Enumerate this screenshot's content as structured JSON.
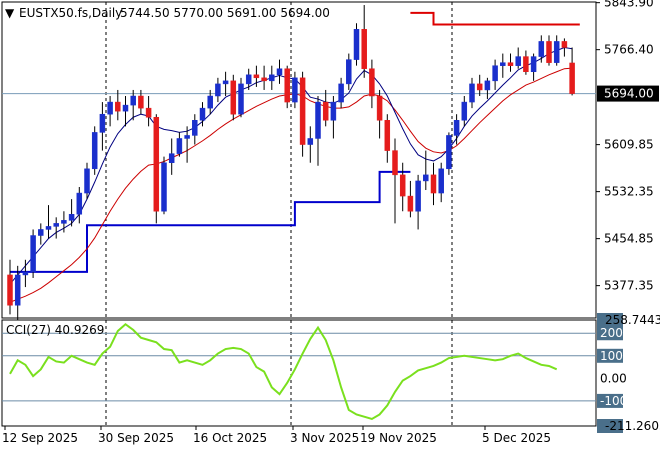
{
  "header": {
    "symbol": "EUSTX50.fs,Daily",
    "ohlc": "5744.50 5770.00 5691.00 5694.00"
  },
  "colors": {
    "bull_candle": "#1a2fcc",
    "bear_candle": "#e51c1c",
    "fast_ma": "#000080",
    "slow_ma": "#cc0000",
    "support": "#0000cc",
    "resistance": "#dd0000",
    "cci_line": "#7ae01e",
    "current_price_bg": "#000000",
    "cci_tag_bg": "#4a6f8a"
  },
  "current_price_label": "5694.00",
  "chart_data": [
    {
      "type": "candlestick",
      "price_axis_labels": [
        "5843.90",
        "5766.40",
        "5609.85",
        "5532.35",
        "5454.85",
        "5377.35"
      ],
      "x_labels": [
        "12 Sep 2025",
        "30 Sep 2025",
        "16 Oct 2025",
        "3 Nov 2025",
        "19 Nov 2025",
        "5 Dec 2025"
      ],
      "ylim": [
        5324,
        5845
      ],
      "candles": [
        [
          5395,
          5420,
          5330,
          5345
        ],
        [
          5345,
          5410,
          5320,
          5395
        ],
        [
          5395,
          5420,
          5375,
          5400
        ],
        [
          5400,
          5470,
          5390,
          5460
        ],
        [
          5460,
          5480,
          5445,
          5470
        ],
        [
          5470,
          5510,
          5455,
          5475
        ],
        [
          5475,
          5490,
          5455,
          5480
        ],
        [
          5480,
          5500,
          5465,
          5485
        ],
        [
          5485,
          5520,
          5475,
          5495
        ],
        [
          5495,
          5540,
          5480,
          5530
        ],
        [
          5530,
          5580,
          5520,
          5570
        ],
        [
          5570,
          5640,
          5560,
          5630
        ],
        [
          5630,
          5680,
          5600,
          5660
        ],
        [
          5660,
          5690,
          5640,
          5680
        ],
        [
          5680,
          5700,
          5650,
          5665
        ],
        [
          5665,
          5690,
          5640,
          5675
        ],
        [
          5675,
          5700,
          5650,
          5690
        ],
        [
          5690,
          5700,
          5660,
          5670
        ],
        [
          5670,
          5690,
          5640,
          5655
        ],
        [
          5655,
          5660,
          5480,
          5500
        ],
        [
          5500,
          5590,
          5495,
          5580
        ],
        [
          5580,
          5620,
          5560,
          5595
        ],
        [
          5595,
          5630,
          5590,
          5620
        ],
        [
          5620,
          5640,
          5580,
          5625
        ],
        [
          5625,
          5660,
          5610,
          5650
        ],
        [
          5650,
          5680,
          5640,
          5670
        ],
        [
          5670,
          5700,
          5660,
          5690
        ],
        [
          5690,
          5720,
          5680,
          5710
        ],
        [
          5710,
          5730,
          5690,
          5715
        ],
        [
          5715,
          5725,
          5650,
          5660
        ],
        [
          5660,
          5720,
          5655,
          5710
        ],
        [
          5710,
          5735,
          5700,
          5725
        ],
        [
          5725,
          5740,
          5705,
          5720
        ],
        [
          5720,
          5740,
          5700,
          5715
        ],
        [
          5715,
          5740,
          5700,
          5725
        ],
        [
          5725,
          5750,
          5710,
          5735
        ],
        [
          5735,
          5740,
          5670,
          5680
        ],
        [
          5680,
          5730,
          5670,
          5720
        ],
        [
          5720,
          5730,
          5590,
          5610
        ],
        [
          5610,
          5640,
          5580,
          5620
        ],
        [
          5620,
          5690,
          5575,
          5680
        ],
        [
          5680,
          5700,
          5640,
          5650
        ],
        [
          5650,
          5690,
          5620,
          5680
        ],
        [
          5680,
          5720,
          5670,
          5710
        ],
        [
          5710,
          5760,
          5700,
          5750
        ],
        [
          5750,
          5810,
          5740,
          5800
        ],
        [
          5800,
          5840,
          5720,
          5735
        ],
        [
          5735,
          5750,
          5670,
          5690
        ],
        [
          5690,
          5700,
          5620,
          5650
        ],
        [
          5650,
          5660,
          5580,
          5600
        ],
        [
          5600,
          5620,
          5480,
          5560
        ],
        [
          5560,
          5580,
          5500,
          5525
        ],
        [
          5525,
          5550,
          5490,
          5500
        ],
        [
          5500,
          5560,
          5470,
          5550
        ],
        [
          5550,
          5600,
          5535,
          5560
        ],
        [
          5560,
          5580,
          5510,
          5530
        ],
        [
          5530,
          5580,
          5515,
          5570
        ],
        [
          5570,
          5630,
          5560,
          5625
        ],
        [
          5625,
          5660,
          5610,
          5650
        ],
        [
          5650,
          5690,
          5640,
          5680
        ],
        [
          5680,
          5720,
          5670,
          5710
        ],
        [
          5710,
          5725,
          5690,
          5700
        ],
        [
          5700,
          5720,
          5685,
          5715
        ],
        [
          5715,
          5750,
          5700,
          5740
        ],
        [
          5740,
          5760,
          5720,
          5745
        ],
        [
          5745,
          5760,
          5730,
          5740
        ],
        [
          5740,
          5770,
          5735,
          5755
        ],
        [
          5755,
          5765,
          5725,
          5730
        ],
        [
          5730,
          5760,
          5715,
          5755
        ],
        [
          5755,
          5790,
          5745,
          5780
        ],
        [
          5780,
          5790,
          5740,
          5745
        ],
        [
          5745,
          5790,
          5740,
          5780
        ],
        [
          5780,
          5785,
          5755,
          5770
        ],
        [
          5744.5,
          5770,
          5691,
          5694
        ]
      ],
      "fast_ma": [
        5380,
        5395,
        5410,
        5425,
        5440,
        5455,
        5465,
        5472,
        5480,
        5495,
        5520,
        5548,
        5578,
        5606,
        5628,
        5643,
        5655,
        5660,
        5657,
        5640,
        5635,
        5633,
        5630,
        5632,
        5638,
        5648,
        5660,
        5675,
        5688,
        5694,
        5700,
        5705,
        5712,
        5716,
        5720,
        5724,
        5720,
        5718,
        5705,
        5688,
        5685,
        5680,
        5678,
        5684,
        5695,
        5718,
        5732,
        5725,
        5710,
        5690,
        5663,
        5636,
        5611,
        5593,
        5586,
        5583,
        5590,
        5603,
        5620,
        5640,
        5657,
        5670,
        5682,
        5695,
        5708,
        5720,
        5733,
        5740,
        5745,
        5752,
        5760,
        5765,
        5770,
        5768
      ],
      "slow_ma": [
        5350,
        5355,
        5360,
        5366,
        5373,
        5382,
        5392,
        5402,
        5412,
        5424,
        5438,
        5456,
        5478,
        5500,
        5520,
        5538,
        5553,
        5566,
        5576,
        5578,
        5582,
        5588,
        5594,
        5600,
        5608,
        5616,
        5625,
        5635,
        5644,
        5652,
        5659,
        5666,
        5673,
        5679,
        5685,
        5690,
        5692,
        5694,
        5690,
        5682,
        5677,
        5673,
        5670,
        5670,
        5672,
        5680,
        5690,
        5693,
        5690,
        5682,
        5667,
        5650,
        5632,
        5615,
        5604,
        5598,
        5596,
        5600,
        5608,
        5620,
        5633,
        5646,
        5658,
        5670,
        5682,
        5692,
        5700,
        5708,
        5713,
        5719,
        5725,
        5730,
        5735,
        5736
      ],
      "support_steps": [
        {
          "price": 5400,
          "from": 0,
          "to": 10
        },
        {
          "price": 5477,
          "from": 10,
          "to": 37
        },
        {
          "price": 5515,
          "from": 37,
          "to": 48
        },
        {
          "price": 5565,
          "from": 48,
          "to": 52
        }
      ],
      "resistance_steps": [
        {
          "price": 5827,
          "from": 52,
          "to": 55
        },
        {
          "price": 5808,
          "from": 55,
          "to": 77
        }
      ]
    },
    {
      "type": "line",
      "name": "CCI(27)",
      "label": "CCI(27) 40.9269",
      "axis_labels": [
        "258.7443",
        "200",
        "100",
        "0.00",
        "-100",
        "-211.2605"
      ],
      "levels": [
        200,
        100,
        -100
      ],
      "ylim": [
        -211.2605,
        258.7443
      ],
      "values": [
        20,
        80,
        60,
        10,
        40,
        95,
        75,
        70,
        100,
        85,
        70,
        60,
        110,
        140,
        210,
        240,
        215,
        180,
        170,
        160,
        130,
        125,
        70,
        80,
        70,
        60,
        80,
        110,
        130,
        135,
        130,
        110,
        50,
        30,
        -40,
        -70,
        -20,
        40,
        110,
        175,
        225,
        170,
        80,
        -40,
        -140,
        -160,
        -170,
        -180,
        -160,
        -120,
        -60,
        -10,
        10,
        35,
        45,
        55,
        70,
        90,
        95,
        100,
        95,
        90,
        85,
        80,
        85,
        100,
        110,
        90,
        75,
        60,
        55,
        40
      ]
    }
  ]
}
